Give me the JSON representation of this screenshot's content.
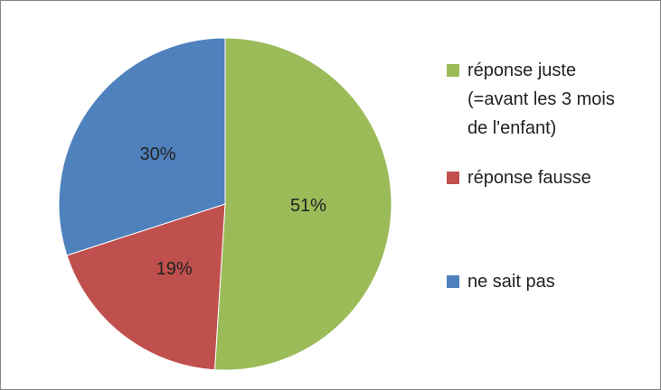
{
  "chart_data": {
    "type": "pie",
    "categories": [
      "réponse juste (=avant les 3 mois de l'enfant)",
      "réponse fausse",
      "ne sait pas"
    ],
    "values": [
      51,
      19,
      30
    ],
    "value_labels": [
      "51%",
      "19%",
      "30%"
    ],
    "colors": [
      "#9bbb59",
      "#c0504d",
      "#4f81bd"
    ],
    "legend": "right"
  }
}
